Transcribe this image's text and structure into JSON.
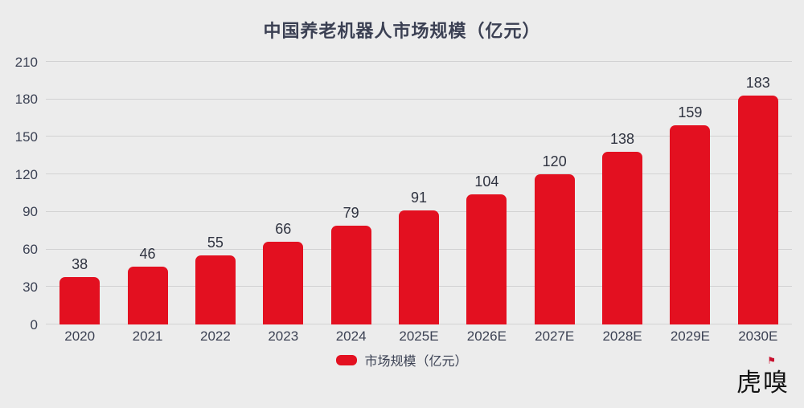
{
  "chart_data": {
    "type": "bar",
    "title": "中国养老机器人市场规模（亿元）",
    "categories": [
      "2020",
      "2021",
      "2022",
      "2023",
      "2024",
      "2025E",
      "2026E",
      "2027E",
      "2028E",
      "2029E",
      "2030E"
    ],
    "values": [
      38,
      46,
      55,
      66,
      79,
      91,
      104,
      120,
      138,
      159,
      183
    ],
    "yticks": [
      0,
      30,
      60,
      90,
      120,
      150,
      180,
      210
    ],
    "ylim": [
      0,
      210
    ],
    "grid": true,
    "legend_position": "bottom",
    "legend": {
      "label": "市场规模（亿元）"
    }
  },
  "branding": {
    "logo_text": "虎嗅",
    "flag_icon": "⚑"
  },
  "colors": {
    "bar": "#e31020",
    "background": "#ececec",
    "text": "#3c4254",
    "gridline": "#d2d2d3",
    "logo": "#141414"
  }
}
